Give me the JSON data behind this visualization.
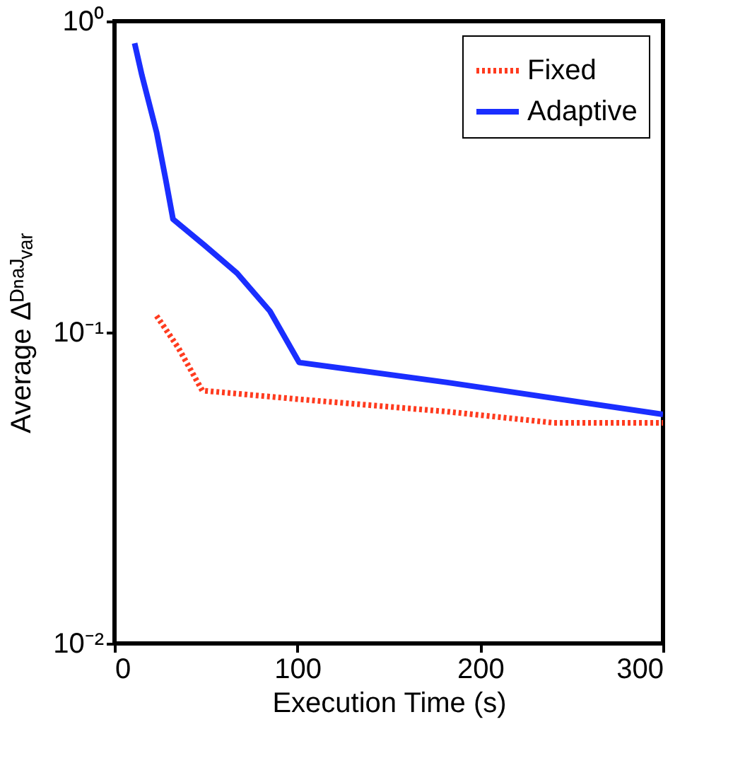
{
  "chart_data": {
    "type": "line",
    "xlabel": "Execution Time (s)",
    "ylabel": "Average Δᴰⁿᵃᴶᵥₐᵣ",
    "xlim": [
      0,
      300
    ],
    "xticks": [
      0,
      100,
      200,
      300
    ],
    "ylim": [
      0.01,
      1
    ],
    "yticks": [
      {
        "value": 0.01,
        "label": "10⁻²"
      },
      {
        "value": 0.1,
        "label": "10⁻¹"
      },
      {
        "value": 1,
        "label": "10⁰"
      }
    ],
    "log": "y",
    "grid": false,
    "legend": "top right",
    "series": [
      {
        "name": "Fixed",
        "color": "#ff3b1f",
        "line_style": "dotted",
        "x": [
          23,
          35,
          48,
          100,
          182,
          240,
          300
        ],
        "values": [
          0.113,
          0.089,
          0.065,
          0.061,
          0.0556,
          0.0512,
          0.0512
        ]
      },
      {
        "name": "Adaptive",
        "color": "#1a2eff",
        "line_style": "solid",
        "x": [
          11,
          15,
          23,
          28,
          32,
          49,
          67,
          85,
          101,
          182,
          300
        ],
        "values": [
          0.85,
          0.67,
          0.44,
          0.31,
          0.231,
          0.191,
          0.155,
          0.117,
          0.08,
          0.069,
          0.0545
        ]
      }
    ]
  }
}
